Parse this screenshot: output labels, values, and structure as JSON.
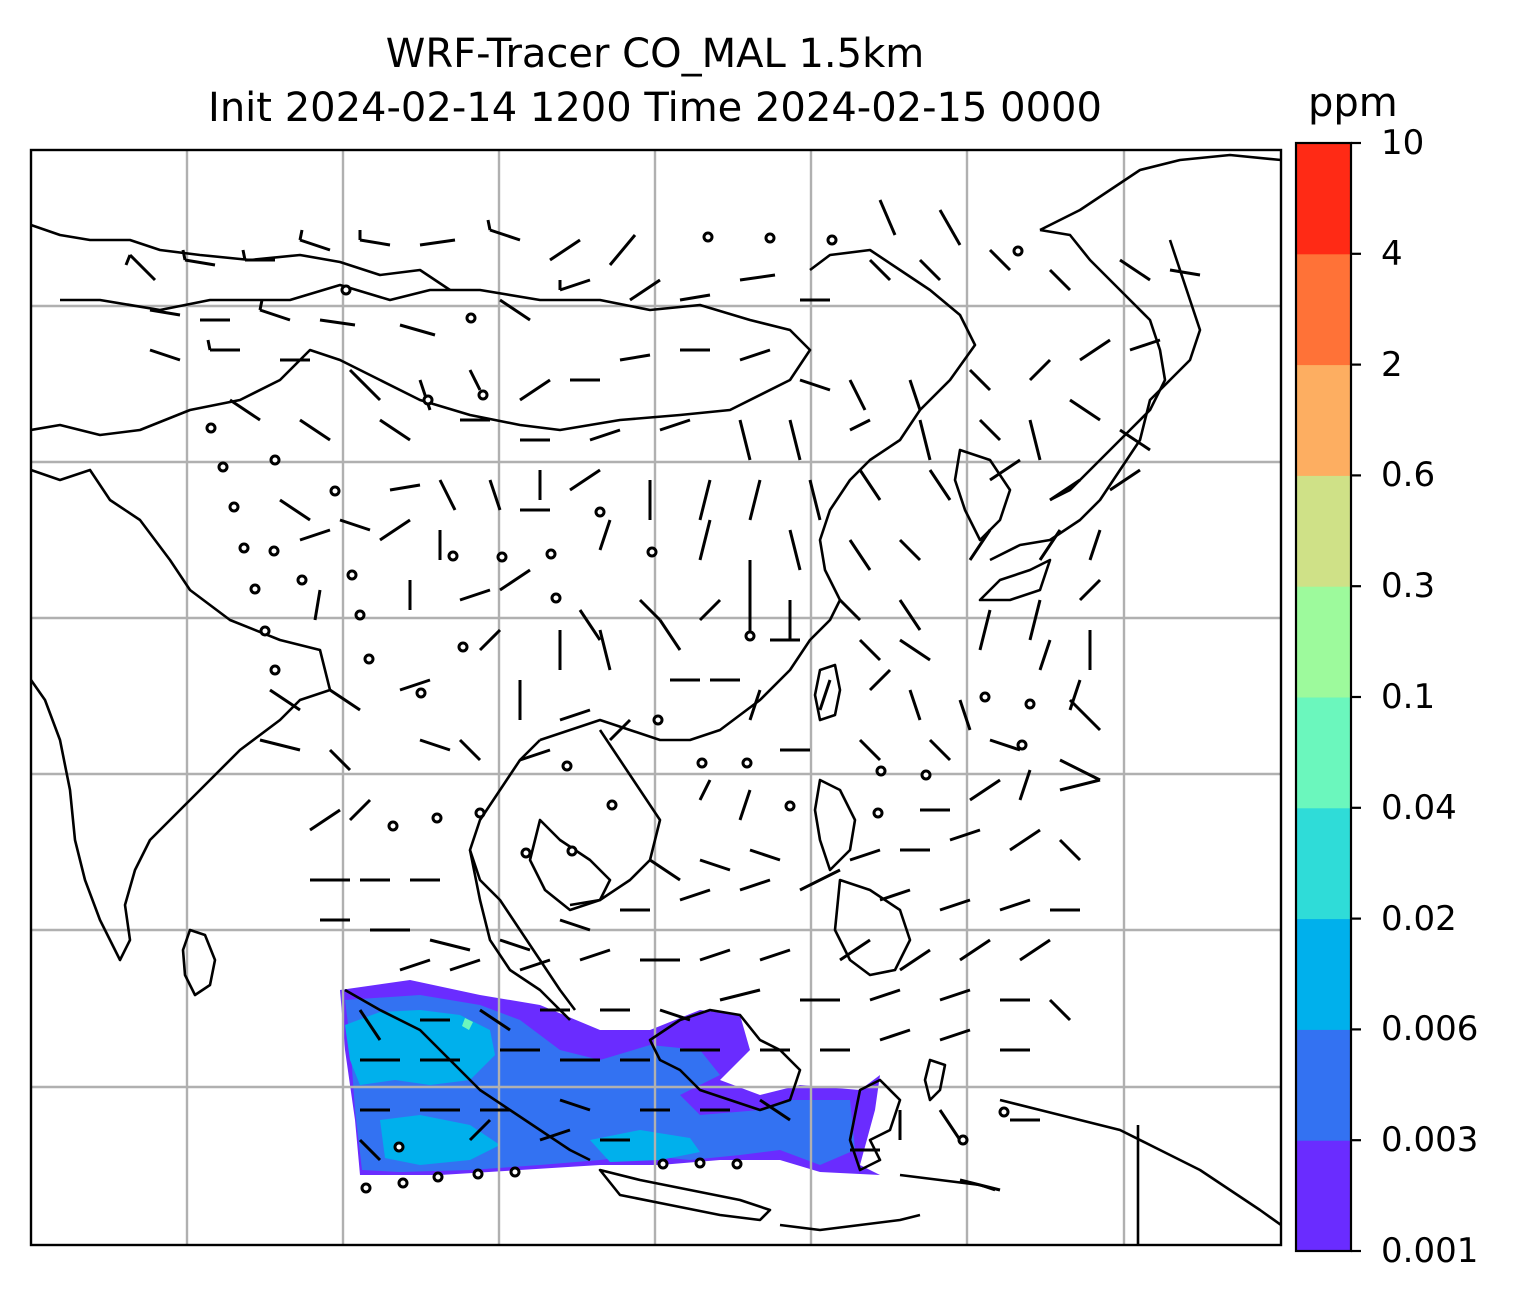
{
  "title": {
    "line1": "WRF-Tracer CO_MAL 1.5km",
    "line2": "Init 2024-02-14 1200 Time 2024-02-15 0000"
  },
  "colorbar": {
    "units": "ppm",
    "levels": [
      "0.001",
      "0.003",
      "0.006",
      "0.02",
      "0.04",
      "0.1",
      "0.3",
      "0.6",
      "2",
      "4",
      "10"
    ],
    "colors": [
      "#6a2cff",
      "#3372f2",
      "#00b0ec",
      "#2fdcd8",
      "#6bf7bd",
      "#9dfa9c",
      "#cfe187",
      "#fdae61",
      "#ff7237",
      "#ff2a15"
    ]
  },
  "map": {
    "background": "#ffffff",
    "coastline_color": "#000000",
    "gridline_color": "#b0b0b0",
    "barb_color": "#000000",
    "tracer_field": "CO_MAL",
    "plume_note": "tracer plume over Sumatra / Malay Peninsula / Borneo region"
  }
}
